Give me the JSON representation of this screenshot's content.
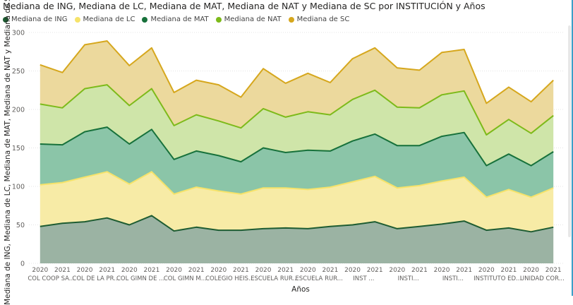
{
  "chart_data": {
    "type": "area",
    "stacked": true,
    "title": "Mediana de ING, Mediana de LC, Mediana de MAT, Mediana de NAT y Mediana de SC por INSTITUCIÓN y Años",
    "xlabel": "Años",
    "ylabel": "Mediana de ING, Mediana de LC, Mediana de MAT, Mediana de NAT y Mediana de SC",
    "ylim": [
      0,
      300
    ],
    "yticks": [
      0,
      50,
      100,
      150,
      200,
      250,
      300
    ],
    "grid": true,
    "legend_position": "top-left",
    "x": [
      "2020",
      "2021",
      "2020",
      "2021",
      "2020",
      "2021",
      "2020",
      "2021",
      "2020",
      "2021",
      "2020",
      "2021",
      "2020",
      "2021",
      "2020",
      "2021",
      "2020",
      "2021",
      "2020",
      "2021",
      "2020",
      "2021",
      "2020",
      "2021"
    ],
    "groups": [
      "COL COOP SA...",
      "COL DE LA PR...",
      "COL GIMN DE ...",
      "COL GIMN M...",
      "COLEGIO HEIS...",
      "ESCUELA RUR...",
      "ESCUELA RUR...",
      "INST ...",
      "INSTI...",
      "INSTI...",
      "INSTITUTO ED...",
      "UNIDAD COR..."
    ],
    "series": [
      {
        "name": "Mediana de ING",
        "color": "#1e5c32",
        "fill": "#9bb3a3",
        "cumulative": [
          48,
          52,
          54,
          59,
          50,
          62,
          42,
          47,
          43,
          43,
          45,
          46,
          45,
          48,
          50,
          54,
          45,
          48,
          51,
          55,
          43,
          46,
          41,
          47
        ]
      },
      {
        "name": "Mediana de LC",
        "color": "#f6e36a",
        "fill": "#f7eba6",
        "cumulative": [
          102,
          105,
          112,
          119,
          103,
          119,
          90,
          99,
          94,
          90,
          98,
          98,
          96,
          99,
          106,
          113,
          98,
          101,
          107,
          112,
          86,
          96,
          86,
          98
        ]
      },
      {
        "name": "Mediana de MAT",
        "color": "#17713b",
        "fill": "#8bc5a8",
        "cumulative": [
          155,
          154,
          171,
          177,
          155,
          174,
          135,
          146,
          140,
          132,
          150,
          144,
          147,
          146,
          159,
          168,
          153,
          153,
          165,
          170,
          127,
          142,
          127,
          145
        ]
      },
      {
        "name": "Mediana de NAT",
        "color": "#7dba1a",
        "fill": "#cfe5a9",
        "cumulative": [
          207,
          202,
          227,
          232,
          205,
          227,
          179,
          193,
          185,
          176,
          201,
          190,
          197,
          193,
          213,
          225,
          203,
          202,
          219,
          224,
          167,
          187,
          169,
          192
        ]
      },
      {
        "name": "Mediana de SC",
        "color": "#d6a71d",
        "fill": "#ecd99d",
        "cumulative": [
          258,
          248,
          284,
          289,
          257,
          280,
          222,
          238,
          232,
          216,
          253,
          234,
          247,
          235,
          266,
          280,
          254,
          251,
          274,
          278,
          208,
          229,
          210,
          238
        ]
      }
    ]
  }
}
